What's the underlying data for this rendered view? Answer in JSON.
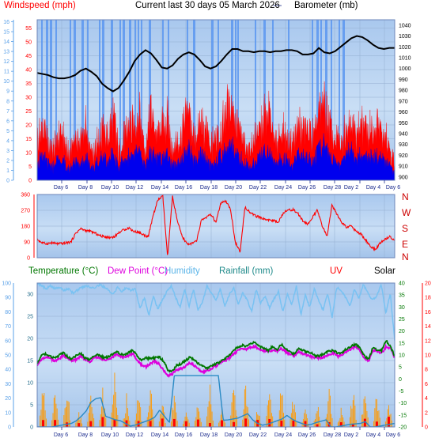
{
  "header": {
    "windspeed_label": "Windspeed (mph)",
    "title": "Current last 30 days 05 March 2026",
    "separator": "---",
    "barometer_label": "Barometer (mb)"
  },
  "legend_bottom": {
    "temperature": "Temperature (°C)",
    "dew_point": "Dew Point (°C)",
    "humidity": "Humidity",
    "rainfall": "Rainfall (mm)",
    "uv": "UV",
    "solar": "Solar"
  },
  "colors": {
    "plot_bg": "#b9d6f2",
    "grid": "#93aed0",
    "gust": "#ff0000",
    "wind": "#0000ee",
    "barometer": "#000000",
    "humidity": "#79c2f2",
    "temperature": "#007700",
    "dew_point": "#dd00dd",
    "rainfall": "#2a8ac4",
    "uv": "#ff0000",
    "solar": "#ff9900",
    "bands": "#5a96f0"
  },
  "chart_data": [
    {
      "type": "area",
      "title": "Current last 30 days 05 March 2026",
      "x_ticks": [
        "Day 6",
        "Day 8",
        "Day 10",
        "Day 12",
        "Day 14",
        "Day 16",
        "Day 18",
        "Day 20",
        "Day 22",
        "Day 24",
        "Day 26",
        "Day 28",
        "Day 2",
        "Day 4",
        "Day 6"
      ],
      "y_left": {
        "label": "Windspeed (mph)",
        "ticks": [
          0,
          5,
          10,
          15,
          20,
          25,
          30,
          35,
          40,
          45,
          50,
          55
        ],
        "range": [
          0,
          58
        ]
      },
      "y_left_outer": {
        "unit": "Beaufort",
        "ticks": [
          0,
          1,
          2,
          3,
          4,
          5,
          6,
          7,
          8,
          9,
          10,
          11,
          12,
          13,
          14,
          15,
          16
        ]
      },
      "y_right": {
        "label": "Barometer (mb)",
        "ticks": [
          900,
          910,
          920,
          930,
          940,
          950,
          960,
          970,
          980,
          990,
          1000,
          1010,
          1020,
          1030,
          1040
        ],
        "range": [
          897,
          1045
        ]
      },
      "series": [
        {
          "name": "Gust",
          "color": "#ff0000",
          "values": [
            18,
            25,
            16,
            14,
            22,
            18,
            13,
            20,
            16,
            24,
            14,
            16,
            24,
            18,
            30,
            13,
            19,
            24,
            26,
            30,
            14,
            34,
            20,
            24,
            28,
            15,
            18,
            24,
            34,
            17,
            24,
            24,
            15,
            20,
            24,
            34,
            36,
            26,
            18,
            14,
            18,
            22,
            30,
            30,
            16,
            22,
            22,
            14,
            24,
            26,
            22,
            20,
            30,
            38,
            24,
            20,
            16,
            26,
            28,
            20,
            26,
            24,
            22,
            26,
            20,
            15,
            8
          ]
        },
        {
          "name": "Wind",
          "color": "#0000ee",
          "values": [
            8,
            11,
            7,
            6,
            10,
            8,
            5,
            9,
            7,
            11,
            6,
            7,
            11,
            8,
            13,
            6,
            9,
            11,
            12,
            13,
            6,
            14,
            9,
            11,
            13,
            7,
            8,
            11,
            15,
            8,
            11,
            11,
            7,
            9,
            11,
            15,
            17,
            12,
            8,
            6,
            8,
            10,
            13,
            13,
            7,
            10,
            10,
            6,
            11,
            12,
            10,
            9,
            14,
            17,
            11,
            9,
            7,
            12,
            13,
            9,
            12,
            11,
            10,
            12,
            9,
            7,
            3
          ]
        },
        {
          "name": "Barometer",
          "color": "#000000",
          "unit": "mb",
          "values": [
            996,
            995,
            994,
            992,
            991,
            991,
            992,
            994,
            998,
            1000,
            997,
            993,
            986,
            982,
            979,
            982,
            989,
            997,
            1007,
            1013,
            1017,
            1014,
            1008,
            1001,
            1000,
            1003,
            1009,
            1013,
            1015,
            1013,
            1008,
            1002,
            1000,
            1002,
            1007,
            1013,
            1018,
            1018,
            1016,
            1016,
            1015,
            1016,
            1016,
            1015,
            1016,
            1016,
            1017,
            1017,
            1016,
            1013,
            1013,
            1014,
            1019,
            1015,
            1014,
            1016,
            1020,
            1024,
            1028,
            1030,
            1029,
            1026,
            1022,
            1019,
            1018,
            1019,
            1019
          ]
        }
      ]
    },
    {
      "type": "scatter",
      "title": "",
      "x_ticks": [
        "Day 6",
        "Day 8",
        "Day 10",
        "Day 12",
        "Day 14",
        "Day 16",
        "Day 18",
        "Day 20",
        "Day 22",
        "Day 24",
        "Day 26",
        "Day 28",
        "Day 2",
        "Day 4",
        "Day 6"
      ],
      "y_left": {
        "ticks": [
          0,
          90,
          180,
          270,
          360
        ],
        "range": [
          0,
          360
        ]
      },
      "y_right": {
        "ticks": [
          "N",
          "W",
          "S",
          "E",
          "N"
        ]
      },
      "series": [
        {
          "name": "Wind direction",
          "color": "#ff0000",
          "values": [
            105,
            85,
            80,
            85,
            80,
            80,
            85,
            90,
            140,
            165,
            155,
            150,
            140,
            125,
            120,
            115,
            120,
            145,
            160,
            170,
            150,
            145,
            130,
            120,
            240,
            330,
            350,
            0,
            350,
            210,
            120,
            80,
            80,
            95,
            215,
            230,
            245,
            200,
            310,
            320,
            280,
            90,
            30,
            290,
            260,
            240,
            230,
            220,
            215,
            210,
            205,
            260,
            270,
            275,
            250,
            210,
            190,
            230,
            270,
            180,
            120,
            300,
            250,
            200,
            175,
            180,
            150,
            135,
            100,
            65,
            45,
            85,
            105,
            120,
            100
          ]
        }
      ]
    },
    {
      "type": "line",
      "title": "",
      "x_ticks": [
        "Day 6",
        "Day 8",
        "Day 10",
        "Day 12",
        "Day 14",
        "Day 16",
        "Day 18",
        "Day 20",
        "Day 22",
        "Day 24",
        "Day 26",
        "Day 28",
        "Day 2",
        "Day 4",
        "Day 6"
      ],
      "y_outer_left": {
        "unit": "%",
        "ticks": [
          0,
          10,
          20,
          30,
          40,
          50,
          60,
          70,
          80,
          90,
          100
        ]
      },
      "y_left": {
        "unit": "mm",
        "ticks": [
          0,
          5,
          10,
          15,
          20,
          25,
          30
        ],
        "range": [
          0,
          32.5
        ]
      },
      "y_right": {
        "unit": "°C",
        "ticks": [
          -20,
          -15,
          -10,
          -5,
          0,
          5,
          10,
          15,
          20,
          25,
          30,
          35,
          40
        ],
        "range": [
          -20,
          40
        ]
      },
      "y_right_outer": {
        "unit": "UV index",
        "ticks": [
          0,
          2,
          4,
          6,
          8,
          10,
          12,
          14,
          16,
          18,
          20
        ]
      },
      "series": [
        {
          "name": "Temperature",
          "color": "#007700",
          "unit": "°C",
          "values": [
            6.5,
            9.8,
            10.5,
            9.3,
            8.6,
            9.8,
            10.9,
            9.2,
            8.4,
            9.7,
            10.8,
            8.7,
            8,
            9.5,
            10.2,
            9.1,
            8.9,
            10.1,
            11.4,
            10.6,
            9.8,
            11.2,
            12.1,
            9.4,
            7.9,
            8.7,
            8.4,
            8.8,
            9.2,
            7.4,
            3.7,
            3.2,
            5.8,
            6.2,
            7.6,
            9.1,
            7.8,
            6.4,
            5.2,
            4.6,
            5.4,
            6.2,
            7.1,
            8.3,
            9.8,
            11.7,
            13.4,
            14.1,
            13.6,
            14.8,
            15.2,
            13.4,
            12.8,
            11.9,
            13.6,
            12.3,
            14.4,
            12.8,
            11.2,
            10.4,
            12.7,
            11.8,
            11.1,
            10.6,
            9.4,
            9.9,
            10.8,
            11.6,
            11.9,
            10.7,
            11.2,
            12.7,
            13.6,
            14.4,
            13.1,
            9.7,
            8.1,
            13.1,
            12.2,
            11.9,
            16.1,
            13.5,
            9.6
          ]
        },
        {
          "name": "Dew Point",
          "color": "#dd00dd",
          "unit": "°C",
          "values": [
            5.6,
            8.1,
            9.3,
            8.7,
            7.3,
            8.4,
            9.8,
            8.6,
            7.5,
            8.1,
            9.6,
            8.2,
            7.1,
            8.6,
            9.1,
            8.3,
            7.8,
            8.6,
            10.2,
            9.5,
            8.9,
            9.7,
            10.4,
            7.6,
            5.8,
            5.1,
            6.4,
            7.4,
            6.1,
            3.4,
            1.3,
            2.1,
            3.9,
            4.3,
            5.2,
            6.9,
            5.6,
            4.1,
            2.8,
            3.5,
            4.4,
            5.5,
            6.8,
            7.4,
            8.7,
            10.2,
            11.8,
            12.9,
            12.4,
            13.2,
            13.6,
            12.1,
            11.9,
            11.4,
            12.1,
            11.6,
            12.7,
            11.4,
            10.2,
            9.6,
            11.4,
            10.6,
            9.8,
            9.2,
            8.7,
            8.6,
            9.4,
            10.4,
            10.7,
            9.5,
            10.3,
            11.4,
            12.6,
            13.5,
            11.8,
            8.8,
            7.3,
            12.1,
            11.6,
            10.8,
            13.4,
            12.7,
            8.9
          ]
        },
        {
          "name": "Humidity",
          "color": "#79c2f2",
          "unit": "%",
          "values": [
            100,
            98,
            96,
            98,
            96,
            97,
            95,
            96,
            93,
            95,
            97,
            98,
            97,
            97,
            99,
            97,
            95,
            92,
            97,
            94,
            97,
            95,
            96,
            82,
            90,
            77,
            91,
            82,
            88,
            94,
            98,
            90,
            83,
            96,
            84,
            96,
            81,
            87,
            98,
            93,
            88,
            96,
            84,
            92,
            97,
            85,
            93,
            88,
            80,
            96,
            86,
            91,
            83,
            89,
            94,
            80,
            92,
            85,
            98,
            78,
            92,
            83,
            96,
            88,
            81,
            93,
            76,
            97,
            95,
            90,
            84,
            96,
            89,
            99,
            93,
            88,
            91,
            99,
            79,
            93,
            60
          ]
        },
        {
          "name": "Rainfall",
          "color": "#2a8ac4",
          "unit": "mm",
          "values": [
            0,
            0,
            0,
            0,
            0.2,
            0.4,
            0.6,
            0.8,
            1.4,
            2.4,
            3.6,
            5.6,
            6.4,
            6.6,
            2.4,
            2,
            1.6,
            1.4,
            0.8,
            0.2,
            0.4,
            0.8,
            1.2,
            1.6,
            2.2,
            3.8,
            2.4,
            1,
            11.6,
            11.6,
            11.6,
            11.6,
            11.6,
            11.6,
            11.6,
            11.6,
            11.6,
            11.6,
            1.5,
            1.6,
            1.8,
            2,
            2.5,
            3,
            1.6,
            0.8,
            0.4,
            0.6,
            1,
            1.4,
            1.8,
            2.6,
            1.8,
            1.2,
            0.8,
            0.4,
            0.6,
            1,
            1.3,
            1.6,
            0,
            0,
            0.2,
            0.4,
            0.6,
            0.7,
            0.8,
            1.2,
            0,
            0,
            0.2,
            0.4,
            0.6,
            0.8
          ]
        }
      ]
    }
  ]
}
